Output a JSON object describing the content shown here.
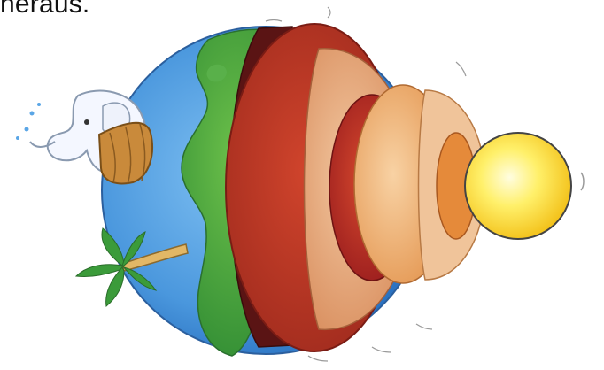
{
  "text": {
    "caption": "heraus."
  },
  "colors": {
    "ocean": "#5aa6e6",
    "land": "#3fa34a",
    "crust_dark": "#5a1414",
    "mantle_outer": "#c0392b",
    "mantle_ring": "#e8b08a",
    "mantle_inner": "#b82828",
    "outer_core": "#f0b27a",
    "outer_core_inner": "#e58a3a",
    "inner_core": "#ffe84a",
    "elephant": "#f4f7ff",
    "wood": "#c98a3b",
    "palm": "#3b9b3a"
  },
  "icons": [
    "earth-globe-icon",
    "cutaway-layers-icon",
    "elephant-icon",
    "wooden-barrel-icon",
    "palm-tree-icon",
    "inner-core-sun-icon"
  ]
}
